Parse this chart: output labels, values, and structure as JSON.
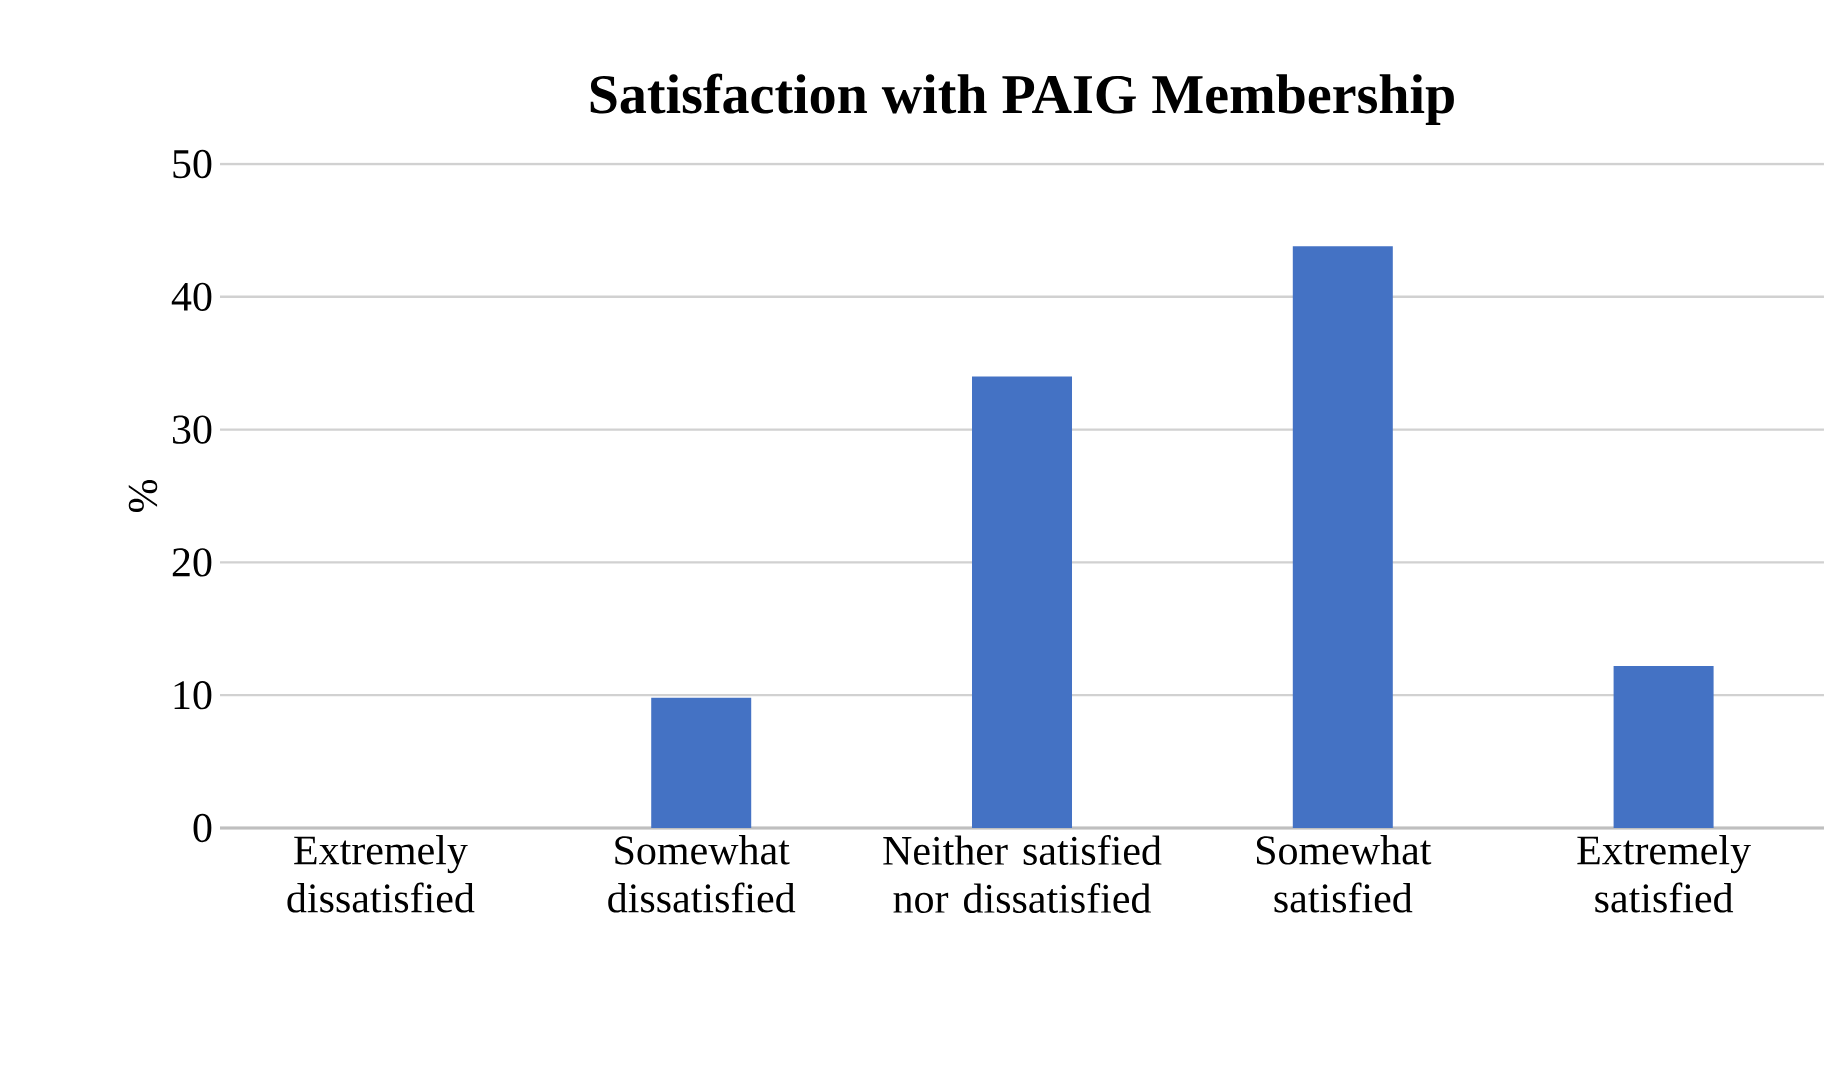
{
  "chart_data": {
    "type": "bar",
    "title": "Satisfaction with PAIG Membership",
    "ylabel": "%",
    "categories": [
      "Extremely dissatisfied",
      "Somewhat dissatisfied",
      "Neither satisfied nor dissatisfied",
      "Somewhat satisfied",
      "Extremely satisfied"
    ],
    "values": [
      0,
      9.8,
      34,
      43.8,
      12.2
    ],
    "color": "#4472c4",
    "ylim": [
      0,
      50
    ],
    "yticks": [
      0,
      10,
      20,
      30,
      40,
      50
    ],
    "grid": "y"
  }
}
